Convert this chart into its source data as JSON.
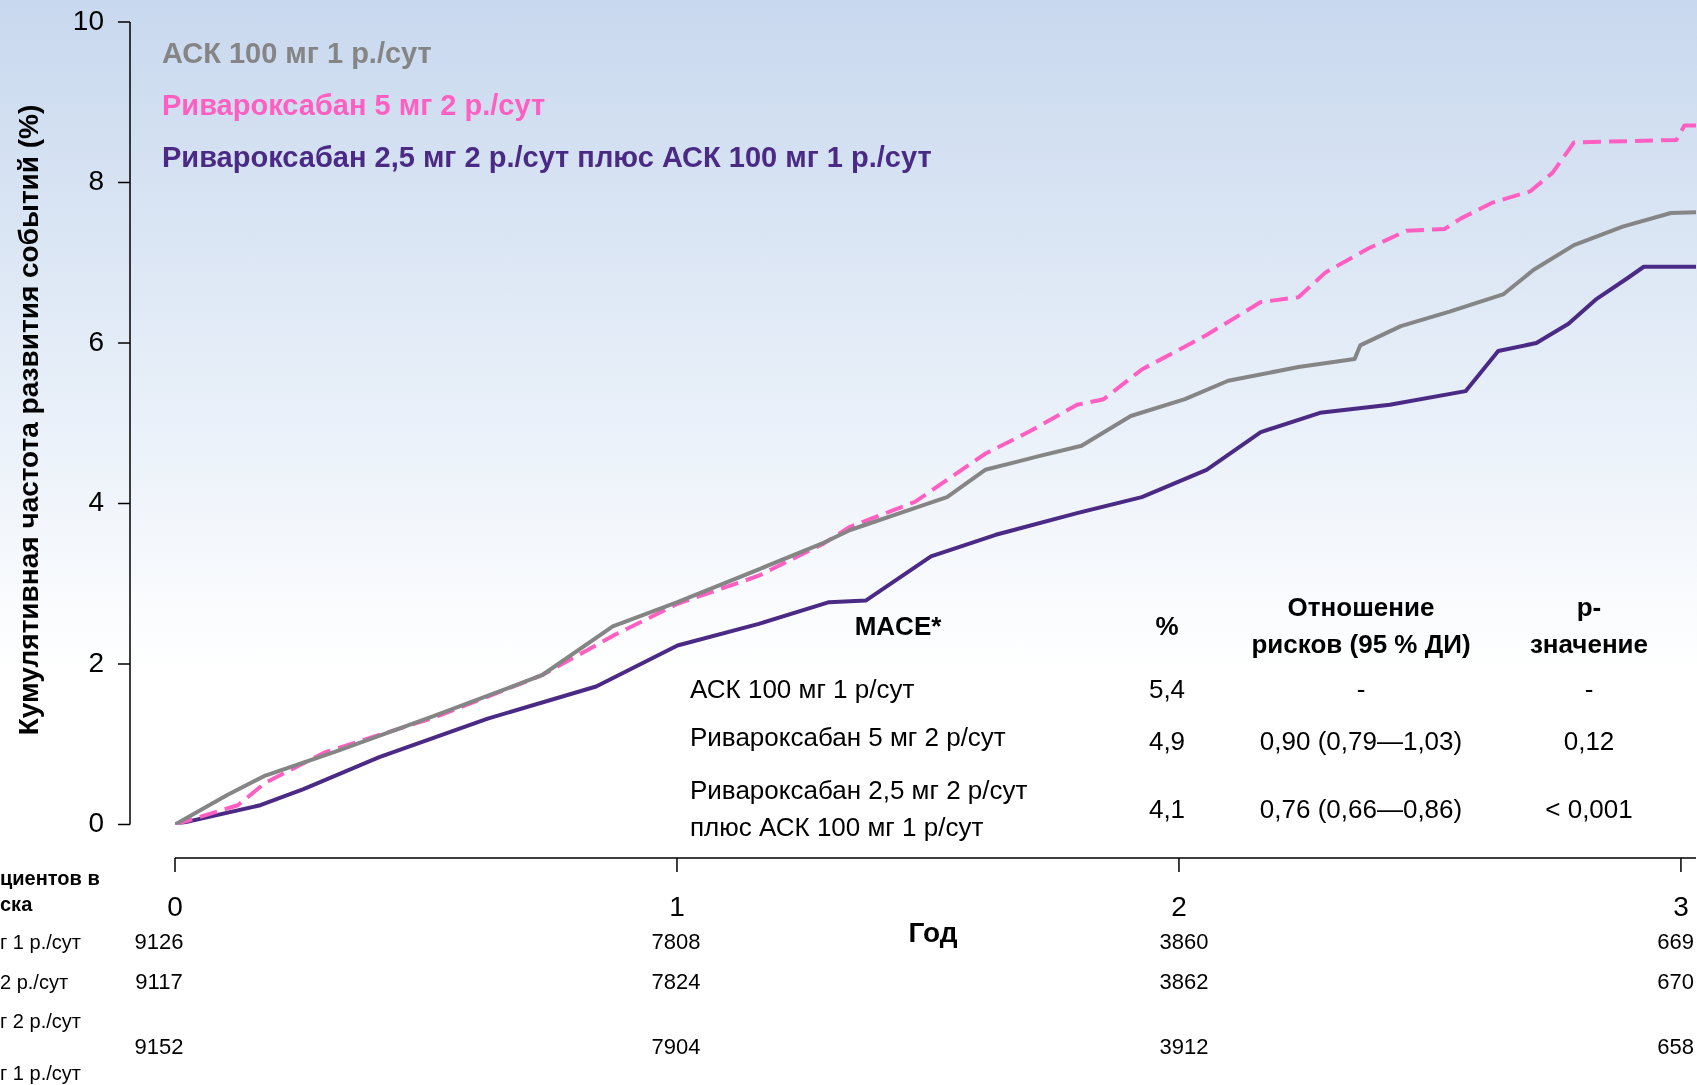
{
  "chart_data": {
    "type": "line",
    "xlabel": "Год",
    "ylabel": "Кумулятивная частота развития событий (%)",
    "xlim": [
      0,
      3.03
    ],
    "xticks": [
      0,
      1,
      2,
      3
    ],
    "ylim": [
      0,
      10
    ],
    "yticks": [
      0,
      2,
      4,
      6,
      8,
      10
    ],
    "grid": false,
    "legend": "top left",
    "marker": "none",
    "series": [
      {
        "name": "АСК 100 мг 1 р./сут",
        "color": "#858585",
        "x": [
          0,
          0.105,
          0.18,
          0.321,
          0.515,
          0.731,
          0.872,
          1.001,
          1.163,
          1.292,
          1.345,
          1.538,
          1.614,
          1.721,
          1.806,
          1.904,
          2.012,
          2.098,
          2.238,
          2.35,
          2.361,
          2.442,
          2.539,
          2.647,
          2.706,
          2.787,
          2.884,
          2.98,
          3.03
        ],
        "values": [
          0,
          0.37,
          0.61,
          0.91,
          1.35,
          1.86,
          2.47,
          2.77,
          3.18,
          3.51,
          3.67,
          4.08,
          4.42,
          4.59,
          4.72,
          5.09,
          5.3,
          5.53,
          5.7,
          5.8,
          5.97,
          6.21,
          6.39,
          6.61,
          6.91,
          7.22,
          7.45,
          7.62,
          7.63
        ]
      },
      {
        "name": "Ривароксабан 5 мг 2 р./сут",
        "color": "#ff5fc0",
        "line_style": "dashed",
        "x": [
          0,
          0.125,
          0.18,
          0.299,
          0.515,
          0.731,
          0.872,
          1.001,
          1.163,
          1.292,
          1.345,
          1.474,
          1.614,
          1.7,
          1.797,
          1.85,
          1.926,
          2.055,
          2.163,
          2.238,
          2.292,
          2.378,
          2.453,
          2.529,
          2.561,
          2.625,
          2.7,
          2.744,
          2.787,
          2.991,
          3.007,
          3.03
        ],
        "values": [
          0,
          0.24,
          0.52,
          0.9,
          1.33,
          1.86,
          2.35,
          2.75,
          3.1,
          3.5,
          3.71,
          4.02,
          4.62,
          4.89,
          5.23,
          5.3,
          5.67,
          6.1,
          6.51,
          6.57,
          6.88,
          7.18,
          7.4,
          7.42,
          7.55,
          7.75,
          7.89,
          8.12,
          8.5,
          8.53,
          8.71,
          8.71
        ]
      },
      {
        "name": "Ривароксабан 2,5 мг 2 р./сут плюс АСК 100 мг 1 р./сут",
        "color": "#4b2a86",
        "x": [
          0,
          0.17,
          0.256,
          0.407,
          0.623,
          0.839,
          1.001,
          1.163,
          1.303,
          1.376,
          1.506,
          1.635,
          1.797,
          1.926,
          2.055,
          2.163,
          2.281,
          2.42,
          2.571,
          2.636,
          2.712,
          2.776,
          2.83,
          2.894,
          2.926,
          3.03
        ],
        "values": [
          0,
          0.24,
          0.44,
          0.84,
          1.32,
          1.72,
          2.23,
          2.5,
          2.77,
          2.79,
          3.34,
          3.61,
          3.88,
          4.08,
          4.42,
          4.89,
          5.13,
          5.23,
          5.4,
          5.9,
          6.0,
          6.24,
          6.54,
          6.81,
          6.95,
          6.95
        ]
      }
    ],
    "annotations": [
      "MACE*",
      "%",
      "Отношение\nрисков (95 % ДИ)",
      "p-\nзначение",
      "АСК 100 мг 1 р/сут",
      "5,4",
      "-",
      "-",
      "Ривароксабан 5 мг 2 р/сут",
      "4,9",
      "0,90 (0,79—1,03)",
      "0,12",
      "Ривароксабан 2,5 мг 2 р/сут\nплюс АСК 100 мг 1 р/сут",
      "4,1",
      "0,76 (0,66—0,86)",
      "< 0,001",
      "циентов в\nска",
      "г 1 р./сут",
      "2 р./сут",
      "г 2 р./сут",
      "г 1 р./сут",
      "9126",
      "7808",
      "3860",
      "669",
      "9117",
      "7824",
      "3862",
      "670",
      "9152",
      "7904",
      "3912",
      "658"
    ]
  }
}
